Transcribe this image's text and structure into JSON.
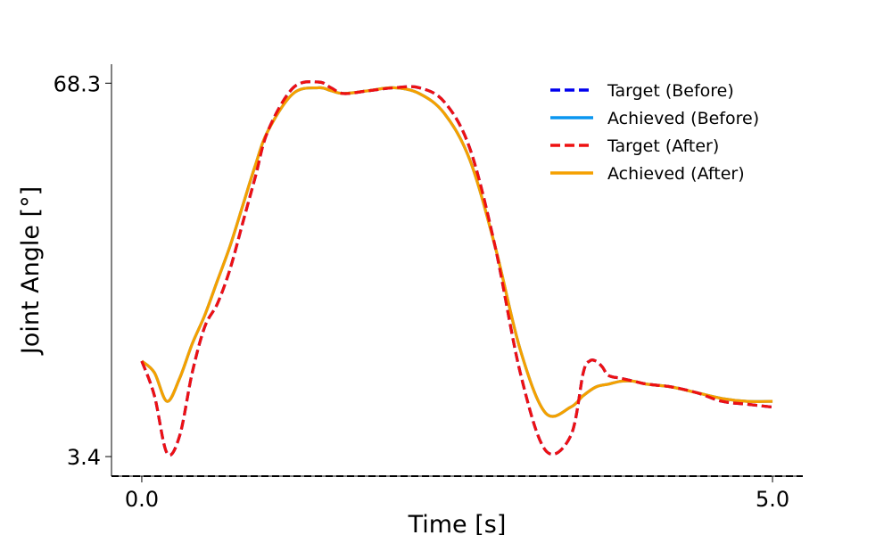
{
  "chart_data": {
    "type": "line",
    "title": "",
    "xlabel": "Time [s]",
    "ylabel": "Joint Angle [°]",
    "xlim": [
      -0.24,
      5.24
    ],
    "ylim": [
      0.0,
      71.6
    ],
    "x_ticks": [
      0.0,
      5.0
    ],
    "x_tick_labels": [
      "0.0",
      "5.0"
    ],
    "y_ticks": [
      3.4,
      68.3
    ],
    "y_tick_labels": [
      "3.4",
      "68.3"
    ],
    "grid": false,
    "legend_position": "top-right",
    "reference_line": {
      "y": 0.0,
      "style": "dashed",
      "color": "#000000"
    },
    "series": [
      {
        "name": "Target (Before)",
        "color": "#0000ee",
        "style": "dashed",
        "x": [
          0.0,
          0.1,
          0.2,
          0.3,
          0.4,
          0.5,
          0.6,
          0.7,
          0.8,
          0.9,
          1.0,
          1.2,
          1.4,
          1.5,
          1.6,
          1.8,
          2.0,
          2.2,
          2.4,
          2.6,
          2.8,
          3.0,
          3.2,
          3.4,
          3.5,
          3.55,
          3.6,
          3.65,
          3.7,
          3.8,
          3.9,
          4.0,
          4.2,
          4.4,
          4.6,
          4.8,
          5.0
        ],
        "y": [
          20.0,
          14.0,
          4.0,
          7.0,
          18.0,
          26.0,
          30.0,
          36.0,
          44.0,
          52.0,
          60.0,
          67.5,
          68.5,
          67.5,
          66.5,
          67.0,
          67.5,
          67.5,
          65.0,
          57.0,
          40.0,
          18.0,
          4.5,
          7.0,
          18.0,
          20.0,
          20.0,
          19.0,
          17.5,
          17.0,
          16.5,
          16.0,
          15.5,
          14.5,
          13.0,
          12.5,
          12.0
        ]
      },
      {
        "name": "Achieved (Before)",
        "color": "#0a96f0",
        "style": "solid",
        "x": [
          0.0,
          0.1,
          0.2,
          0.3,
          0.4,
          0.5,
          0.6,
          0.7,
          0.8,
          0.9,
          1.0,
          1.2,
          1.4,
          1.5,
          1.6,
          1.8,
          2.0,
          2.2,
          2.4,
          2.6,
          2.8,
          3.0,
          3.2,
          3.4,
          3.5,
          3.6,
          3.7,
          3.8,
          3.9,
          4.0,
          4.2,
          4.4,
          4.6,
          4.8,
          5.0
        ],
        "y": [
          20.0,
          18.0,
          13.0,
          17.0,
          23.0,
          28.0,
          34.0,
          40.0,
          47.0,
          54.0,
          60.0,
          66.5,
          67.5,
          67.0,
          66.5,
          67.0,
          67.5,
          66.5,
          63.0,
          55.0,
          40.0,
          22.0,
          11.0,
          12.0,
          14.0,
          15.5,
          16.0,
          16.5,
          16.5,
          16.0,
          15.5,
          14.5,
          13.5,
          13.0,
          13.0
        ]
      },
      {
        "name": "Target (After)",
        "color": "#ee1111",
        "style": "dashed",
        "x": [
          0.0,
          0.1,
          0.2,
          0.3,
          0.4,
          0.5,
          0.6,
          0.7,
          0.8,
          0.9,
          1.0,
          1.2,
          1.4,
          1.5,
          1.6,
          1.8,
          2.0,
          2.2,
          2.4,
          2.6,
          2.8,
          3.0,
          3.2,
          3.4,
          3.5,
          3.55,
          3.6,
          3.65,
          3.7,
          3.8,
          3.9,
          4.0,
          4.2,
          4.4,
          4.6,
          4.8,
          5.0
        ],
        "y": [
          20.0,
          14.0,
          4.0,
          7.0,
          18.0,
          26.0,
          30.0,
          36.0,
          44.0,
          52.0,
          60.0,
          67.5,
          68.5,
          67.5,
          66.5,
          67.0,
          67.5,
          67.5,
          65.0,
          57.0,
          40.0,
          18.0,
          4.5,
          7.0,
          18.0,
          20.0,
          20.0,
          19.0,
          17.5,
          17.0,
          16.5,
          16.0,
          15.5,
          14.5,
          13.0,
          12.5,
          12.0
        ]
      },
      {
        "name": "Achieved (After)",
        "color": "#f5a000",
        "style": "solid",
        "x": [
          0.0,
          0.1,
          0.2,
          0.3,
          0.4,
          0.5,
          0.6,
          0.7,
          0.8,
          0.9,
          1.0,
          1.2,
          1.4,
          1.5,
          1.6,
          1.8,
          2.0,
          2.2,
          2.4,
          2.6,
          2.8,
          3.0,
          3.2,
          3.4,
          3.5,
          3.6,
          3.7,
          3.8,
          3.9,
          4.0,
          4.2,
          4.4,
          4.6,
          4.8,
          5.0
        ],
        "y": [
          20.0,
          18.0,
          13.0,
          17.0,
          23.0,
          28.0,
          34.0,
          40.0,
          47.0,
          54.0,
          60.0,
          66.5,
          67.5,
          67.0,
          66.5,
          67.0,
          67.5,
          66.5,
          63.0,
          55.0,
          40.0,
          22.0,
          11.0,
          12.0,
          14.0,
          15.5,
          16.0,
          16.5,
          16.5,
          16.0,
          15.5,
          14.5,
          13.5,
          13.0,
          13.0
        ]
      }
    ]
  }
}
